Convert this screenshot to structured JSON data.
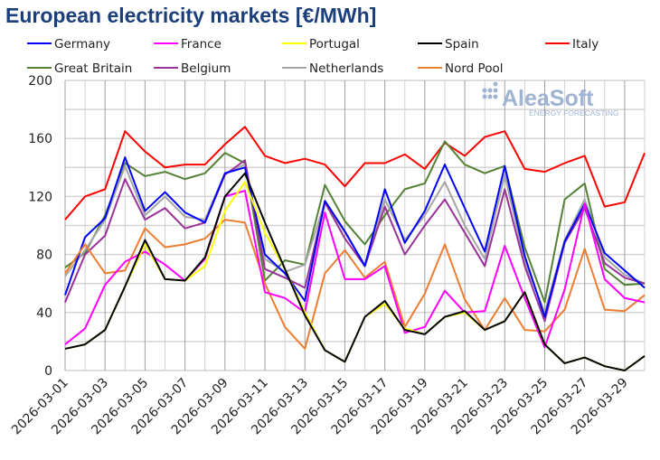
{
  "chart_data": {
    "type": "line",
    "title": "European electricity markets [€/MWh]",
    "xlabel": "",
    "ylabel": "",
    "ylim": [
      0,
      200
    ],
    "yticks": [
      0,
      40,
      80,
      120,
      160,
      200
    ],
    "grid": true,
    "legend_position": "top",
    "watermark": {
      "name": "AleaSoft",
      "sub": "ENERGY FORECASTING"
    },
    "x": [
      "2026-03-01",
      "2026-03-02",
      "2026-03-03",
      "2026-03-04",
      "2026-03-05",
      "2026-03-06",
      "2026-03-07",
      "2026-03-08",
      "2026-03-09",
      "2026-03-10",
      "2026-03-11",
      "2026-03-12",
      "2026-03-13",
      "2026-03-14",
      "2026-03-15",
      "2026-03-16",
      "2026-03-17",
      "2026-03-18",
      "2026-03-19",
      "2026-03-20",
      "2026-03-21",
      "2026-03-22",
      "2026-03-23",
      "2026-03-24",
      "2026-03-25",
      "2026-03-26",
      "2026-03-27",
      "2026-03-28",
      "2026-03-29",
      "2026-03-30"
    ],
    "xtick_labels": [
      "2026-03-01",
      "2026-03-03",
      "2026-03-05",
      "2026-03-07",
      "2026-03-09",
      "2026-03-11",
      "2026-03-13",
      "2026-03-15",
      "2026-03-17",
      "2026-03-19",
      "2026-03-21",
      "2026-03-23",
      "2026-03-25",
      "2026-03-27",
      "2026-03-29"
    ],
    "series": [
      {
        "name": "Italy",
        "color": "#ff0000",
        "values": [
          104,
          120,
          125,
          165,
          151,
          140,
          142,
          142,
          156,
          168,
          148,
          143,
          146,
          142,
          127,
          143,
          143,
          149,
          139,
          157,
          148,
          161,
          165,
          139,
          137,
          143,
          148,
          113,
          116,
          150
        ]
      },
      {
        "name": "Great Britain",
        "color": "#548235",
        "values": [
          71,
          81,
          107,
          143,
          134,
          137,
          132,
          136,
          150,
          143,
          62,
          76,
          73,
          128,
          103,
          87,
          107,
          125,
          129,
          158,
          142,
          136,
          141,
          85,
          47,
          118,
          129,
          70,
          59,
          60
        ]
      },
      {
        "name": "Netherlands",
        "color": "#a6a6a6",
        "values": [
          65,
          83,
          104,
          141,
          107,
          120,
          106,
          104,
          136,
          142,
          77,
          68,
          73,
          116,
          95,
          73,
          118,
          90,
          107,
          130,
          100,
          77,
          135,
          75,
          40,
          90,
          118,
          78,
          66,
          60
        ]
      },
      {
        "name": "Belgium",
        "color": "#993399",
        "values": [
          47,
          80,
          93,
          132,
          104,
          112,
          98,
          102,
          135,
          145,
          70,
          64,
          57,
          116,
          91,
          72,
          113,
          80,
          100,
          118,
          95,
          72,
          125,
          72,
          34,
          88,
          112,
          74,
          64,
          60
        ]
      },
      {
        "name": "Germany",
        "color": "#0000ff",
        "values": [
          52,
          92,
          105,
          147,
          110,
          123,
          109,
          102,
          136,
          140,
          80,
          67,
          48,
          117,
          96,
          72,
          125,
          88,
          110,
          142,
          112,
          82,
          141,
          79,
          37,
          89,
          115,
          81,
          69,
          57
        ]
      },
      {
        "name": "Nord Pool",
        "color": "#ed7d31",
        "values": [
          67,
          87,
          67,
          69,
          98,
          85,
          87,
          91,
          104,
          102,
          60,
          30,
          15,
          67,
          83,
          64,
          75,
          30,
          53,
          87,
          49,
          28,
          50,
          28,
          27,
          42,
          84,
          42,
          41,
          52
        ]
      },
      {
        "name": "France",
        "color": "#ff00ff",
        "values": [
          18,
          29,
          59,
          75,
          82,
          73,
          62,
          77,
          120,
          124,
          54,
          50,
          40,
          109,
          63,
          63,
          72,
          26,
          30,
          55,
          40,
          41,
          86,
          50,
          16,
          56,
          115,
          63,
          50,
          47
        ]
      },
      {
        "name": "Portugal",
        "color": "#ffff00",
        "values": [
          15,
          18,
          28,
          58,
          87,
          63,
          62,
          72,
          110,
          130,
          95,
          70,
          40,
          14,
          6,
          37,
          46,
          29,
          25,
          37,
          40,
          28,
          34,
          54,
          18,
          5,
          9,
          3,
          0,
          10
        ]
      },
      {
        "name": "Spain",
        "color": "#000000",
        "values": [
          15,
          18,
          28,
          58,
          90,
          63,
          62,
          78,
          120,
          136,
          102,
          70,
          38,
          14,
          6,
          37,
          48,
          28,
          25,
          37,
          41,
          28,
          34,
          54,
          18,
          5,
          9,
          3,
          0,
          10
        ]
      }
    ],
    "legend": [
      {
        "name": "Germany",
        "color": "#0000ff"
      },
      {
        "name": "France",
        "color": "#ff00ff"
      },
      {
        "name": "Portugal",
        "color": "#ffff00"
      },
      {
        "name": "Spain",
        "color": "#000000"
      },
      {
        "name": "Italy",
        "color": "#ff0000"
      },
      {
        "name": "Great Britain",
        "color": "#548235"
      },
      {
        "name": "Belgium",
        "color": "#993399"
      },
      {
        "name": "Netherlands",
        "color": "#a6a6a6"
      },
      {
        "name": "Nord Pool",
        "color": "#ed7d31"
      }
    ]
  }
}
